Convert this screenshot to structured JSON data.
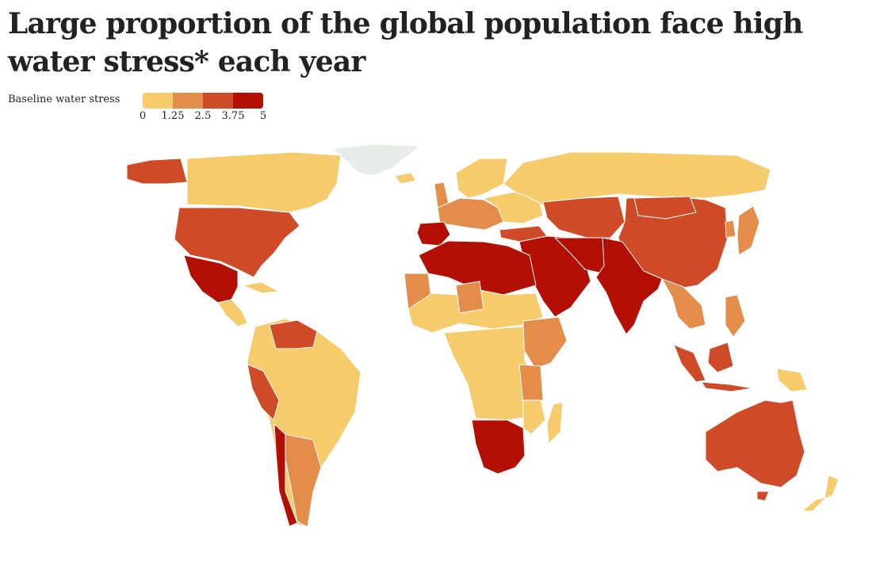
{
  "title": "Large proportion of the global population face high water stress* each year",
  "legend": {
    "label": "Baseline water stress",
    "ticks": [
      "0",
      "1.25",
      "2.5",
      "3.75",
      "5"
    ],
    "colors": [
      "#f5cb6b",
      "#e48c4a",
      "#cf4a27",
      "#b40f05"
    ]
  },
  "map_colors": {
    "low": "#f5cb6b",
    "low_medium": "#e48c4a",
    "medium_high": "#cf4a27",
    "extremely_high": "#b40f05",
    "no_data": "#e6ece8"
  }
}
